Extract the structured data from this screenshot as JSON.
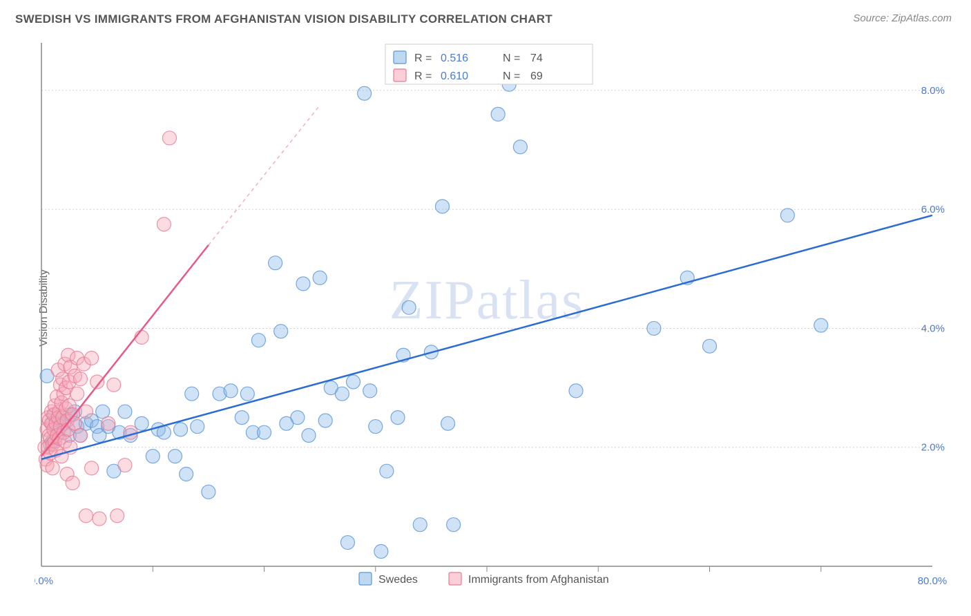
{
  "title": "SWEDISH VS IMMIGRANTS FROM AFGHANISTAN VISION DISABILITY CORRELATION CHART",
  "source_prefix": "Source: ",
  "source_link": "ZipAtlas.com",
  "ylabel": "Vision Disability",
  "watermark": "ZIPatlas",
  "chart": {
    "type": "scatter",
    "background_color": "#ffffff",
    "grid_color": "#d0d0d0",
    "axis_color": "#888888",
    "xlim": [
      0,
      80
    ],
    "ylim": [
      0,
      8.8
    ],
    "x_tick_step_major": 10,
    "x_tick_labels": [
      "0.0%",
      "80.0%"
    ],
    "y_ticks": [
      2.0,
      4.0,
      6.0,
      8.0
    ],
    "y_tick_labels": [
      "2.0%",
      "4.0%",
      "6.0%",
      "8.0%"
    ],
    "series": [
      {
        "key": "blue",
        "label": "Swedes",
        "color_fill": "#89b8e8",
        "color_stroke": "#5a94d6",
        "r_value": "0.516",
        "n_value": "74",
        "reg_line": {
          "x1": 0,
          "y1": 1.8,
          "x2": 80,
          "y2": 5.9
        },
        "marker_r": 10,
        "points": [
          [
            0.5,
            3.2
          ],
          [
            0.8,
            2.05
          ],
          [
            1.0,
            2.4
          ],
          [
            1.0,
            2.1
          ],
          [
            1.2,
            2.55
          ],
          [
            1.5,
            2.25
          ],
          [
            1.6,
            2.45
          ],
          [
            2.0,
            2.4
          ],
          [
            2.5,
            2.2
          ],
          [
            2.6,
            2.55
          ],
          [
            3.0,
            2.6
          ],
          [
            3.2,
            2.35
          ],
          [
            3.5,
            2.2
          ],
          [
            4.0,
            2.4
          ],
          [
            4.5,
            2.45
          ],
          [
            5.0,
            2.35
          ],
          [
            5.2,
            2.2
          ],
          [
            5.5,
            2.6
          ],
          [
            6.0,
            2.35
          ],
          [
            6.5,
            1.6
          ],
          [
            7.0,
            2.25
          ],
          [
            7.5,
            2.6
          ],
          [
            8.0,
            2.2
          ],
          [
            9.0,
            2.4
          ],
          [
            10.0,
            1.85
          ],
          [
            10.5,
            2.3
          ],
          [
            11.0,
            2.25
          ],
          [
            12.0,
            1.85
          ],
          [
            12.5,
            2.3
          ],
          [
            13.0,
            1.55
          ],
          [
            13.5,
            2.9
          ],
          [
            14.0,
            2.35
          ],
          [
            15.0,
            1.25
          ],
          [
            16.0,
            2.9
          ],
          [
            17.0,
            2.95
          ],
          [
            18.0,
            2.5
          ],
          [
            18.5,
            2.9
          ],
          [
            19.0,
            2.25
          ],
          [
            19.5,
            3.8
          ],
          [
            20.0,
            2.25
          ],
          [
            21.0,
            5.1
          ],
          [
            21.5,
            3.95
          ],
          [
            22.0,
            2.4
          ],
          [
            23.0,
            2.5
          ],
          [
            23.5,
            4.75
          ],
          [
            24.0,
            2.2
          ],
          [
            25.0,
            4.85
          ],
          [
            25.5,
            2.45
          ],
          [
            26.0,
            3.0
          ],
          [
            27.0,
            2.9
          ],
          [
            27.5,
            0.4
          ],
          [
            28.0,
            3.1
          ],
          [
            29.0,
            7.95
          ],
          [
            29.5,
            2.95
          ],
          [
            30.0,
            2.35
          ],
          [
            30.5,
            0.25
          ],
          [
            31.0,
            1.6
          ],
          [
            32.0,
            2.5
          ],
          [
            32.5,
            3.55
          ],
          [
            33.0,
            4.35
          ],
          [
            34.0,
            0.7
          ],
          [
            35.0,
            3.6
          ],
          [
            36.0,
            6.05
          ],
          [
            36.5,
            2.4
          ],
          [
            37.0,
            0.7
          ],
          [
            41.0,
            7.6
          ],
          [
            42.0,
            8.1
          ],
          [
            43.0,
            7.05
          ],
          [
            48.0,
            2.95
          ],
          [
            55.0,
            4.0
          ],
          [
            58.0,
            4.85
          ],
          [
            60.0,
            3.7
          ],
          [
            67.0,
            5.9
          ],
          [
            70.0,
            4.05
          ]
        ]
      },
      {
        "key": "pink",
        "label": "Immigrants from Afghanistan",
        "color_fill": "#f5a8b8",
        "color_stroke": "#e87a92",
        "r_value": "0.610",
        "n_value": "69",
        "reg_line": {
          "x1": 0,
          "y1": 1.85,
          "x2": 15,
          "y2": 5.4
        },
        "reg_extrap": {
          "x1": 15,
          "y1": 5.4,
          "x2": 25,
          "y2": 7.75
        },
        "marker_r": 10,
        "points": [
          [
            0.3,
            2.0
          ],
          [
            0.4,
            1.8
          ],
          [
            0.5,
            2.3
          ],
          [
            0.5,
            1.7
          ],
          [
            0.6,
            2.5
          ],
          [
            0.6,
            2.0
          ],
          [
            0.7,
            2.2
          ],
          [
            0.7,
            2.45
          ],
          [
            0.8,
            1.9
          ],
          [
            0.8,
            2.15
          ],
          [
            0.9,
            2.4
          ],
          [
            0.9,
            2.6
          ],
          [
            1.0,
            2.05
          ],
          [
            1.0,
            1.65
          ],
          [
            1.1,
            2.3
          ],
          [
            1.1,
            2.55
          ],
          [
            1.2,
            2.1
          ],
          [
            1.2,
            2.7
          ],
          [
            1.3,
            1.95
          ],
          [
            1.3,
            2.4
          ],
          [
            1.4,
            2.2
          ],
          [
            1.4,
            2.85
          ],
          [
            1.5,
            2.5
          ],
          [
            1.5,
            3.3
          ],
          [
            1.6,
            2.15
          ],
          [
            1.6,
            2.6
          ],
          [
            1.7,
            3.05
          ],
          [
            1.7,
            2.35
          ],
          [
            1.8,
            2.75
          ],
          [
            1.8,
            1.85
          ],
          [
            1.9,
            2.5
          ],
          [
            1.9,
            3.15
          ],
          [
            2.0,
            2.25
          ],
          [
            2.0,
            2.9
          ],
          [
            2.1,
            3.4
          ],
          [
            2.1,
            2.1
          ],
          [
            2.2,
            2.65
          ],
          [
            2.2,
            3.0
          ],
          [
            2.3,
            2.45
          ],
          [
            2.3,
            1.55
          ],
          [
            2.4,
            3.55
          ],
          [
            2.4,
            2.3
          ],
          [
            2.5,
            3.1
          ],
          [
            2.5,
            2.7
          ],
          [
            2.6,
            2.0
          ],
          [
            2.6,
            3.35
          ],
          [
            2.8,
            2.55
          ],
          [
            2.8,
            1.4
          ],
          [
            3.0,
            3.2
          ],
          [
            3.0,
            2.4
          ],
          [
            3.2,
            2.9
          ],
          [
            3.2,
            3.5
          ],
          [
            3.5,
            3.15
          ],
          [
            3.5,
            2.2
          ],
          [
            3.8,
            3.4
          ],
          [
            4.0,
            2.6
          ],
          [
            4.0,
            0.85
          ],
          [
            4.5,
            3.5
          ],
          [
            4.5,
            1.65
          ],
          [
            5.0,
            3.1
          ],
          [
            5.2,
            0.8
          ],
          [
            6.0,
            2.4
          ],
          [
            6.5,
            3.05
          ],
          [
            6.8,
            0.85
          ],
          [
            7.5,
            1.7
          ],
          [
            8.0,
            2.25
          ],
          [
            9.0,
            3.85
          ],
          [
            11.0,
            5.75
          ],
          [
            11.5,
            7.2
          ]
        ]
      }
    ]
  },
  "stats_legend": {
    "r_label": "R =",
    "n_label": "N ="
  },
  "bottom_legend": {
    "items": [
      "Swedes",
      "Immigrants from Afghanistan"
    ]
  }
}
